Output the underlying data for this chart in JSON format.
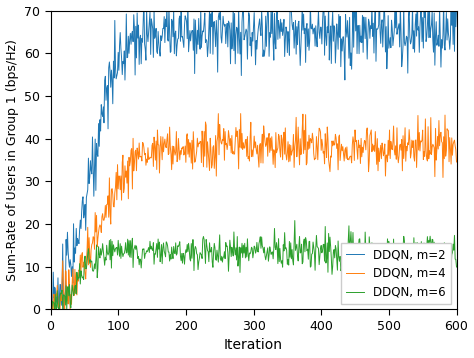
{
  "title": "",
  "xlabel": "Iteration",
  "ylabel": "Sum-Rate of Users in Group 1 (bps/Hz)",
  "xlim": [
    0,
    600
  ],
  "ylim": [
    0,
    70
  ],
  "yticks": [
    0,
    10,
    20,
    30,
    40,
    50,
    60,
    70
  ],
  "xticks": [
    0,
    100,
    200,
    300,
    400,
    500,
    600
  ],
  "legend": [
    "DDQN, m=2",
    "DDQN, m=4",
    "DDQN, m=6"
  ],
  "colors": [
    "#1f77b4",
    "#ff7f0e",
    "#2ca02c"
  ],
  "figsize": [
    4.74,
    3.58
  ],
  "dpi": 100,
  "m2_plateau": 65.0,
  "m2_rise_end": 110,
  "m2_noise_plateau": 3.2,
  "m2_noise_rise": 5.0,
  "m4_plateau": 38.0,
  "m4_rise_end": 130,
  "m4_noise_plateau": 2.2,
  "m4_noise_rise": 3.5,
  "m6_plateau": 13.5,
  "m6_rise_end": 75,
  "m6_noise_plateau": 1.6,
  "m6_noise_rise": 2.0,
  "linewidth": 0.7
}
